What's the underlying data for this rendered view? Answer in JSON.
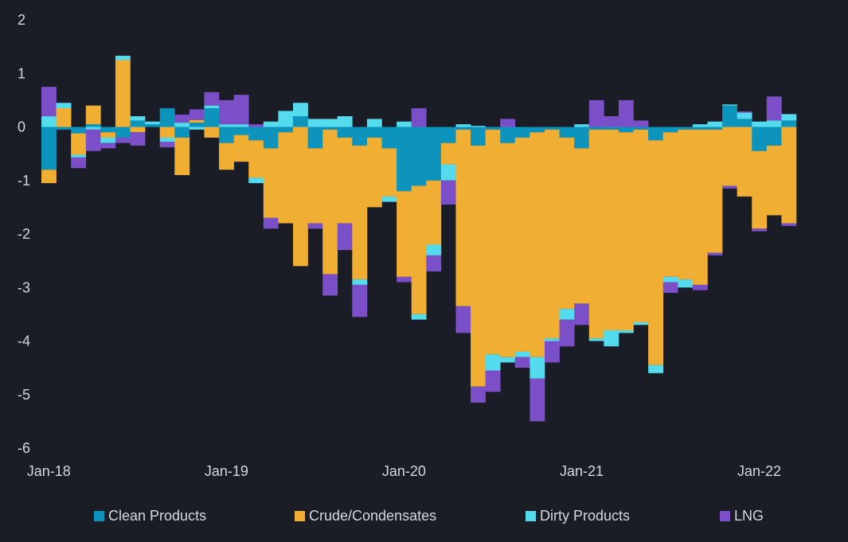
{
  "chart_data": {
    "type": "bar",
    "stacked": true,
    "title": "",
    "xlabel": "",
    "ylabel": "",
    "ylim": [
      -6,
      2
    ],
    "y_ticks": [
      2,
      1,
      0,
      -1,
      -2,
      -3,
      -4,
      -5,
      -6
    ],
    "x_tick_labels": [
      {
        "label": "Jan-18",
        "index": 0
      },
      {
        "label": "Jan-19",
        "index": 12
      },
      {
        "label": "Jan-20",
        "index": 24
      },
      {
        "label": "Jan-21",
        "index": 36
      },
      {
        "label": "Jan-22",
        "index": 48
      }
    ],
    "categories": [
      "Jan-18",
      "Feb-18",
      "Mar-18",
      "Apr-18",
      "May-18",
      "Jun-18",
      "Jul-18",
      "Aug-18",
      "Sep-18",
      "Oct-18",
      "Nov-18",
      "Dec-18",
      "Jan-19",
      "Feb-19",
      "Mar-19",
      "Apr-19",
      "May-19",
      "Jun-19",
      "Jul-19",
      "Aug-19",
      "Sep-19",
      "Oct-19",
      "Nov-19",
      "Dec-19",
      "Jan-20",
      "Feb-20",
      "Mar-20",
      "Apr-20",
      "May-20",
      "Jun-20",
      "Jul-20",
      "Aug-20",
      "Sep-20",
      "Oct-20",
      "Nov-20",
      "Dec-20",
      "Jan-21",
      "Feb-21",
      "Mar-21",
      "Apr-21",
      "May-21",
      "Jun-21",
      "Jul-21",
      "Aug-21",
      "Sep-21",
      "Oct-21",
      "Nov-21",
      "Dec-21",
      "Jan-22",
      "Feb-22",
      "Mar-22"
    ],
    "series": [
      {
        "name": "Clean Products",
        "color": "#0d94bd",
        "values": [
          -0.8,
          -0.05,
          -0.12,
          0.05,
          -0.1,
          -0.2,
          0.12,
          0.05,
          0.35,
          -0.2,
          0.08,
          0.35,
          -0.3,
          -0.15,
          -0.25,
          -0.4,
          -0.1,
          0.2,
          -0.4,
          -0.05,
          -0.2,
          -0.35,
          -0.2,
          -0.4,
          -1.2,
          -1.1,
          -1.0,
          -0.3,
          -0.05,
          -0.35,
          -0.05,
          -0.3,
          -0.2,
          -0.1,
          -0.05,
          -0.2,
          -0.4,
          -0.05,
          -0.05,
          -0.1,
          -0.05,
          -0.25,
          -0.1,
          -0.05,
          -0.05,
          -0.05,
          0.4,
          0.15,
          -0.45,
          -0.35,
          0.12
        ]
      },
      {
        "name": "Crude/Condensates",
        "color": "#f0ae33",
        "values": [
          -0.25,
          0.35,
          -0.4,
          0.35,
          -0.1,
          1.25,
          -0.1,
          0.0,
          -0.2,
          -0.7,
          0.05,
          -0.2,
          -0.5,
          -0.5,
          -0.7,
          -1.3,
          -1.7,
          -2.6,
          -1.4,
          -2.7,
          -1.6,
          -2.5,
          -1.3,
          -0.9,
          -1.6,
          -2.4,
          -1.2,
          -0.4,
          -3.3,
          -4.5,
          -4.2,
          -4.0,
          -4.0,
          -4.2,
          -3.9,
          -3.2,
          -2.9,
          -3.9,
          -3.75,
          -3.7,
          -3.6,
          -4.2,
          -2.7,
          -2.8,
          -2.9,
          -2.3,
          -1.1,
          -1.3,
          -1.45,
          -1.3,
          -1.8
        ]
      },
      {
        "name": "Dirty Products",
        "color": "#55dbee",
        "values": [
          0.2,
          0.1,
          -0.05,
          -0.05,
          -0.1,
          0.08,
          0.08,
          0.05,
          -0.08,
          0.08,
          -0.05,
          0.05,
          0.05,
          0.05,
          -0.1,
          0.1,
          0.3,
          0.25,
          0.15,
          0.15,
          0.2,
          -0.1,
          0.15,
          -0.1,
          0.1,
          -0.1,
          -0.2,
          -0.3,
          0.05,
          0.02,
          -0.3,
          -0.1,
          -0.1,
          -0.4,
          -0.05,
          -0.2,
          0.05,
          -0.05,
          -0.3,
          -0.05,
          -0.05,
          -0.15,
          -0.1,
          -0.15,
          0.05,
          0.1,
          0.02,
          0.12,
          0.1,
          0.12,
          0.12
        ]
      },
      {
        "name": "LNG",
        "color": "#7b4fc8",
        "values": [
          0.55,
          0.0,
          -0.2,
          -0.4,
          -0.1,
          -0.1,
          -0.25,
          0.0,
          -0.1,
          0.15,
          0.2,
          0.25,
          0.45,
          0.55,
          0.05,
          -0.2,
          0.0,
          0.0,
          -0.1,
          -0.4,
          -0.5,
          -0.6,
          0.0,
          0.0,
          -0.1,
          0.35,
          -0.3,
          -0.45,
          -0.5,
          -0.3,
          -0.4,
          0.15,
          -0.2,
          -0.8,
          -0.4,
          -0.5,
          -0.4,
          0.5,
          0.2,
          0.5,
          0.12,
          0.0,
          -0.2,
          0.0,
          -0.1,
          -0.05,
          -0.05,
          0.02,
          -0.05,
          0.45,
          -0.05
        ]
      }
    ],
    "legend": {
      "position": "bottom"
    }
  }
}
